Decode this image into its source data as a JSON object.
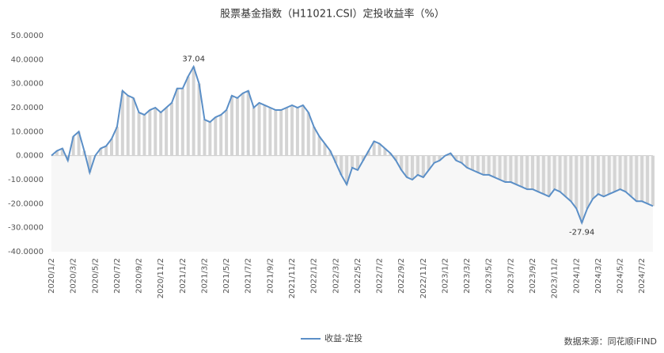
{
  "chart_data": {
    "type": "line",
    "title": "股票基金指数（H11021.CSI）定投收益率（%）",
    "categories": [
      "2020/1/2",
      null,
      null,
      null,
      "2020/3/2",
      null,
      null,
      null,
      "2020/5/2",
      null,
      null,
      null,
      "2020/7/2",
      null,
      null,
      null,
      "2020/9/2",
      null,
      null,
      null,
      "2020/11/2",
      null,
      null,
      null,
      "2021/1/2",
      null,
      null,
      null,
      "2021/3/2",
      null,
      null,
      null,
      "2021/5/2",
      null,
      null,
      null,
      "2021/7/2",
      null,
      null,
      null,
      "2021/9/2",
      null,
      null,
      null,
      "2021/11/2",
      null,
      null,
      null,
      "2022/1/2",
      null,
      null,
      null,
      "2022/3/2",
      null,
      null,
      null,
      "2022/5/2",
      null,
      null,
      null,
      "2022/7/2",
      null,
      null,
      null,
      "2022/9/2",
      null,
      null,
      null,
      "2022/11/2",
      null,
      null,
      null,
      "2023/1/2",
      null,
      null,
      null,
      "2023/3/2",
      null,
      null,
      null,
      "2023/5/2",
      null,
      null,
      null,
      "2023/7/2",
      null,
      null,
      null,
      "2023/9/2",
      null,
      null,
      null,
      "2023/11/2",
      null,
      null,
      null,
      "2024/1/2",
      null,
      null,
      null,
      "2024/3/2",
      null,
      null,
      null,
      "2024/5/2",
      null,
      null,
      null,
      "2024/7/2",
      null,
      null
    ],
    "series": [
      {
        "name": "收益-定投",
        "color": "#5b8fc7",
        "values": [
          0,
          2,
          3,
          -2,
          8,
          10,
          2,
          -7,
          0,
          3,
          4,
          7,
          12,
          27,
          25,
          24,
          18,
          17,
          19,
          20,
          18,
          20,
          22,
          28,
          28,
          33,
          37.04,
          30,
          15,
          14,
          16,
          17,
          19,
          25,
          24,
          26,
          27,
          20,
          22,
          21,
          20,
          19,
          19,
          20,
          21,
          20,
          21,
          18,
          12,
          8,
          5,
          2,
          -3,
          -8,
          -12,
          -5,
          -6,
          -2,
          2,
          6,
          5,
          3,
          1,
          -2,
          -6,
          -9,
          -10,
          -8,
          -9,
          -6,
          -3,
          -2,
          0,
          1,
          -2,
          -3,
          -5,
          -6,
          -7,
          -8,
          -8,
          -9,
          -10,
          -11,
          -11,
          -12,
          -13,
          -14,
          -14,
          -15,
          -16,
          -17,
          -14,
          -15,
          -17,
          -19,
          -22,
          -27.94,
          -22,
          -18,
          -16,
          -17,
          -16,
          -15,
          -14,
          -15,
          -17,
          -19,
          -19,
          -20,
          -21
        ],
        "value_labels": [
          null,
          null,
          null,
          null,
          null,
          null,
          null,
          null,
          null,
          null,
          null,
          null,
          null,
          null,
          null,
          null,
          null,
          null,
          null,
          null,
          null,
          null,
          null,
          null,
          null,
          null,
          "37.04",
          null,
          null,
          null,
          null,
          null,
          null,
          null,
          null,
          null,
          null,
          null,
          null,
          null,
          null,
          null,
          null,
          null,
          null,
          null,
          null,
          null,
          null,
          null,
          null,
          null,
          null,
          null,
          null,
          null,
          null,
          null,
          null,
          null,
          null,
          null,
          null,
          null,
          null,
          null,
          null,
          null,
          null,
          null,
          null,
          null,
          null,
          null,
          null,
          null,
          null,
          null,
          null,
          null,
          null,
          null,
          null,
          null,
          null,
          null,
          null,
          null,
          null,
          null,
          null,
          null,
          null,
          null,
          null,
          null,
          null,
          "-27.94",
          null,
          null,
          null,
          null,
          null,
          null,
          null,
          null,
          null,
          null,
          null,
          null,
          null
        ]
      }
    ],
    "ylim": [
      -40,
      50
    ],
    "yticks": [
      {
        "value": -40,
        "label": "-40.0000"
      },
      {
        "value": -30,
        "label": "-30.0000"
      },
      {
        "value": -20,
        "label": "-20.0000"
      },
      {
        "value": -10,
        "label": "-10.0000"
      },
      {
        "value": 0,
        "label": "0.0000"
      },
      {
        "value": 10,
        "label": "10.0000"
      },
      {
        "value": 20,
        "label": "20.0000"
      },
      {
        "value": 30,
        "label": "30.0000"
      },
      {
        "value": 40,
        "label": "40.0000"
      },
      {
        "value": 50,
        "label": "50.0000"
      }
    ],
    "source": "数据来源：同花顺iFIND",
    "legend": "bottom"
  }
}
